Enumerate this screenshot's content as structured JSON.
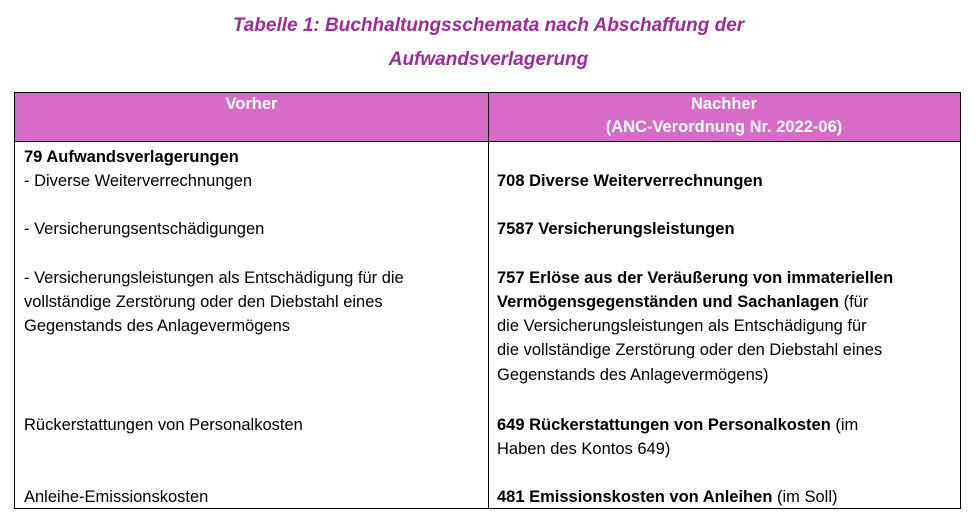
{
  "title": {
    "line1": "Tabelle 1: Buchhaltungsschemata nach Abschaffung der",
    "line2": "Aufwandsverlagerung"
  },
  "header": {
    "before": "Vorher",
    "after_line1": "Nachher",
    "after_line2": "(ANC-Verordnung Nr. 2022-06)"
  },
  "before": {
    "heading": "79 Aufwandsverlagerungen",
    "items": [
      "- Diverse Weiterverrechnungen",
      "- Versicherungsentschädigungen",
      "- Versicherungsleistungen als Entschädigung für die",
      "vollständige Zerstörung oder den Diebstahl eines",
      "Gegenstands des Anlagevermögens",
      "Rückerstattungen von Personalkosten",
      "Anleihe-Emissionskosten"
    ]
  },
  "after": {
    "r1": "708 Diverse Weiterverrechnungen",
    "r2": "7587 Versicherungsleistungen",
    "r3_bold1": "757 Erlöse aus der Veräußerung von immateriellen",
    "r3_bold2": "Vermögensgegenständen und Sachanlagen",
    "r3_rest2": " (für",
    "r3_l3": "die Versicherungsleistungen als Entschädigung für",
    "r3_l4": "die vollständige Zerstörung oder den Diebstahl eines",
    "r3_l5": "Gegenstands des Anlagevermögens)",
    "r4_bold": "649 Rückerstattungen von Personalkosten",
    "r4_rest": " (im",
    "r4_l2": "Haben des Kontos 649)",
    "r5_bold": "481 Emissionskosten von Anleihen",
    "r5_rest": " (im Soll)"
  },
  "colors": {
    "title": "#9b2d94",
    "header_bg": "#d66cc8"
  }
}
